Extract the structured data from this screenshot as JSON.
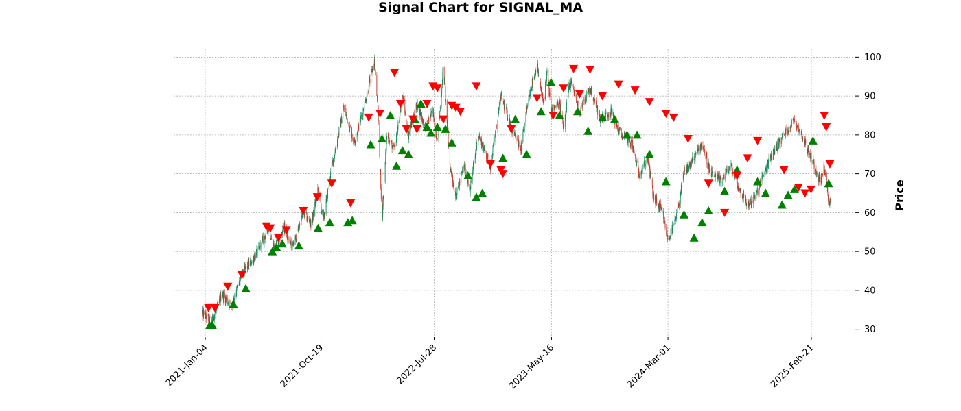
{
  "chart_data": {
    "type": "candlestick",
    "title": "Signal Chart for SIGNAL_MA",
    "ylabel": "Price",
    "xlabel": "",
    "ylim": [
      28,
      102
    ],
    "grid": true,
    "x_tick_labels": [
      "2021-Jan-04",
      "2021-Oct-19",
      "2022-Jul-28",
      "2023-May-16",
      "2024-Mar-01",
      "2025-Feb-21"
    ],
    "y_ticks": [
      30,
      40,
      50,
      60,
      70,
      80,
      90,
      100
    ],
    "colors": {
      "up": "#1b8a5a",
      "down": "#c0392b",
      "buy": "#008000",
      "sell": "#ff0000",
      "grid": "#a8a8a8"
    },
    "price_path": [
      [
        "2020-12-28",
        34
      ],
      [
        "2021-01-20",
        32
      ],
      [
        "2021-02-15",
        39
      ],
      [
        "2021-03-10",
        36
      ],
      [
        "2021-04-05",
        44
      ],
      [
        "2021-05-15",
        50
      ],
      [
        "2021-06-10",
        56
      ],
      [
        "2021-06-25",
        51
      ],
      [
        "2021-07-20",
        56
      ],
      [
        "2021-08-10",
        51
      ],
      [
        "2021-09-05",
        60
      ],
      [
        "2021-09-25",
        57
      ],
      [
        "2021-10-12",
        66
      ],
      [
        "2021-10-25",
        58
      ],
      [
        "2021-11-15",
        72
      ],
      [
        "2021-12-15",
        87
      ],
      [
        "2022-01-10",
        78
      ],
      [
        "2022-02-05",
        88
      ],
      [
        "2022-03-01",
        99
      ],
      [
        "2022-03-10",
        86
      ],
      [
        "2022-03-20",
        58
      ],
      [
        "2022-04-01",
        80
      ],
      [
        "2022-04-20",
        76
      ],
      [
        "2022-05-10",
        90
      ],
      [
        "2022-05-25",
        80
      ],
      [
        "2022-06-15",
        88
      ],
      [
        "2022-07-05",
        82
      ],
      [
        "2022-07-25",
        86
      ],
      [
        "2022-08-05",
        78
      ],
      [
        "2022-08-20",
        98
      ],
      [
        "2022-09-05",
        72
      ],
      [
        "2022-09-20",
        64
      ],
      [
        "2022-10-10",
        72
      ],
      [
        "2022-10-25",
        66
      ],
      [
        "2022-11-15",
        80
      ],
      [
        "2022-12-15",
        72
      ],
      [
        "2023-01-10",
        90
      ],
      [
        "2023-02-05",
        82
      ],
      [
        "2023-03-01",
        76
      ],
      [
        "2023-03-20",
        90
      ],
      [
        "2023-04-10",
        98
      ],
      [
        "2023-04-25",
        88
      ],
      [
        "2023-05-05",
        96
      ],
      [
        "2023-05-15",
        86
      ],
      [
        "2023-06-05",
        88
      ],
      [
        "2023-06-15",
        82
      ],
      [
        "2023-07-01",
        94
      ],
      [
        "2023-07-25",
        86
      ],
      [
        "2023-08-20",
        92
      ],
      [
        "2023-09-15",
        84
      ],
      [
        "2023-10-10",
        86
      ],
      [
        "2023-11-05",
        80
      ],
      [
        "2023-12-01",
        78
      ],
      [
        "2023-12-20",
        70
      ],
      [
        "2024-01-10",
        74
      ],
      [
        "2024-01-25",
        64
      ],
      [
        "2024-02-15",
        60
      ],
      [
        "2024-03-01",
        53
      ],
      [
        "2024-03-20",
        58
      ],
      [
        "2024-04-10",
        70
      ],
      [
        "2024-05-05",
        74
      ],
      [
        "2024-05-25",
        78
      ],
      [
        "2024-06-15",
        70
      ],
      [
        "2024-07-10",
        68
      ],
      [
        "2024-08-05",
        72
      ],
      [
        "2024-08-25",
        66
      ],
      [
        "2024-09-15",
        62
      ],
      [
        "2024-10-05",
        64
      ],
      [
        "2024-10-25",
        70
      ],
      [
        "2024-11-20",
        76
      ],
      [
        "2024-12-15",
        80
      ],
      [
        "2025-01-10",
        84
      ],
      [
        "2025-02-05",
        78
      ],
      [
        "2025-03-01",
        72
      ],
      [
        "2025-03-15",
        68
      ],
      [
        "2025-03-25",
        72
      ],
      [
        "2025-04-05",
        62
      ],
      [
        "2025-04-12",
        64
      ]
    ],
    "buy_signals": [
      [
        "2021-01-15",
        31
      ],
      [
        "2021-01-22",
        31
      ],
      [
        "2021-03-15",
        36.5
      ],
      [
        "2021-04-15",
        40.5
      ],
      [
        "2021-06-20",
        50
      ],
      [
        "2021-07-01",
        51
      ],
      [
        "2021-07-15",
        52
      ],
      [
        "2021-08-25",
        51.5
      ],
      [
        "2021-10-12",
        56
      ],
      [
        "2021-11-10",
        57.5
      ],
      [
        "2021-12-25",
        57.5
      ],
      [
        "2022-01-05",
        58
      ],
      [
        "2022-02-20",
        77.5
      ],
      [
        "2022-03-20",
        79
      ],
      [
        "2022-04-10",
        85
      ],
      [
        "2022-04-25",
        72
      ],
      [
        "2022-05-10",
        76
      ],
      [
        "2022-05-25",
        75
      ],
      [
        "2022-06-10",
        84
      ],
      [
        "2022-06-25",
        88
      ],
      [
        "2022-07-10",
        82
      ],
      [
        "2022-07-20",
        80.5
      ],
      [
        "2022-08-05",
        82
      ],
      [
        "2022-08-25",
        81.5
      ],
      [
        "2022-09-10",
        78
      ],
      [
        "2022-10-20",
        69.5
      ],
      [
        "2022-11-10",
        64
      ],
      [
        "2022-11-25",
        65
      ],
      [
        "2023-01-15",
        74
      ],
      [
        "2023-02-15",
        84
      ],
      [
        "2023-03-15",
        75
      ],
      [
        "2023-04-20",
        86
      ],
      [
        "2023-05-15",
        93.5
      ],
      [
        "2023-06-05",
        85
      ],
      [
        "2023-07-20",
        86
      ],
      [
        "2023-08-15",
        81
      ],
      [
        "2023-09-20",
        84.5
      ],
      [
        "2023-10-20",
        84
      ],
      [
        "2023-11-20",
        80
      ],
      [
        "2023-12-15",
        80
      ],
      [
        "2024-01-15",
        75
      ],
      [
        "2024-02-25",
        68
      ],
      [
        "2024-04-10",
        59.5
      ],
      [
        "2024-05-05",
        53.5
      ],
      [
        "2024-05-25",
        57.5
      ],
      [
        "2024-06-10",
        60.5
      ],
      [
        "2024-07-20",
        65.5
      ],
      [
        "2024-08-20",
        71
      ],
      [
        "2024-10-10",
        68
      ],
      [
        "2024-10-30",
        65
      ],
      [
        "2024-12-10",
        62
      ],
      [
        "2024-12-25",
        64.5
      ],
      [
        "2025-01-10",
        66
      ],
      [
        "2025-02-25",
        78.5
      ],
      [
        "2025-04-05",
        67.5
      ]
    ],
    "sell_signals": [
      [
        "2021-01-12",
        35.5
      ],
      [
        "2021-01-28",
        35.5
      ],
      [
        "2021-03-01",
        41
      ],
      [
        "2021-04-05",
        44
      ],
      [
        "2021-06-05",
        56.5
      ],
      [
        "2021-06-15",
        56
      ],
      [
        "2021-07-05",
        53.5
      ],
      [
        "2021-07-25",
        55.5
      ],
      [
        "2021-09-05",
        60.5
      ],
      [
        "2021-10-10",
        64
      ],
      [
        "2021-11-15",
        67.5
      ],
      [
        "2022-01-01",
        62.5
      ],
      [
        "2022-02-15",
        84.5
      ],
      [
        "2022-03-15",
        85.5
      ],
      [
        "2022-04-20",
        96
      ],
      [
        "2022-05-05",
        88
      ],
      [
        "2022-05-20",
        81.5
      ],
      [
        "2022-06-05",
        84
      ],
      [
        "2022-06-15",
        81.5
      ],
      [
        "2022-07-10",
        88
      ],
      [
        "2022-07-25",
        92.5
      ],
      [
        "2022-08-05",
        92
      ],
      [
        "2022-08-20",
        84
      ],
      [
        "2022-09-10",
        87.5
      ],
      [
        "2022-09-20",
        87
      ],
      [
        "2022-10-01",
        86
      ],
      [
        "2022-11-10",
        92.5
      ],
      [
        "2022-12-15",
        72.5
      ],
      [
        "2023-01-10",
        71
      ],
      [
        "2023-01-15",
        70
      ],
      [
        "2023-02-05",
        81.5
      ],
      [
        "2023-04-10",
        89.5
      ],
      [
        "2023-05-20",
        85
      ],
      [
        "2023-06-15",
        92
      ],
      [
        "2023-07-10",
        97
      ],
      [
        "2023-07-25",
        90.5
      ],
      [
        "2023-08-20",
        96.8
      ],
      [
        "2023-09-20",
        90
      ],
      [
        "2023-10-30",
        93
      ],
      [
        "2023-12-10",
        91.5
      ],
      [
        "2024-01-15",
        88.5
      ],
      [
        "2024-02-25",
        85.5
      ],
      [
        "2024-03-15",
        84.5
      ],
      [
        "2024-04-20",
        79
      ],
      [
        "2024-06-10",
        67.5
      ],
      [
        "2024-07-20",
        60
      ],
      [
        "2024-08-20",
        69.5
      ],
      [
        "2024-09-15",
        74
      ],
      [
        "2024-10-10",
        78.5
      ],
      [
        "2024-12-15",
        71
      ],
      [
        "2025-01-20",
        66.5
      ],
      [
        "2025-02-05",
        65
      ],
      [
        "2025-02-20",
        66
      ],
      [
        "2025-03-25",
        85
      ],
      [
        "2025-03-30",
        82
      ],
      [
        "2025-04-08",
        72.5
      ]
    ]
  }
}
